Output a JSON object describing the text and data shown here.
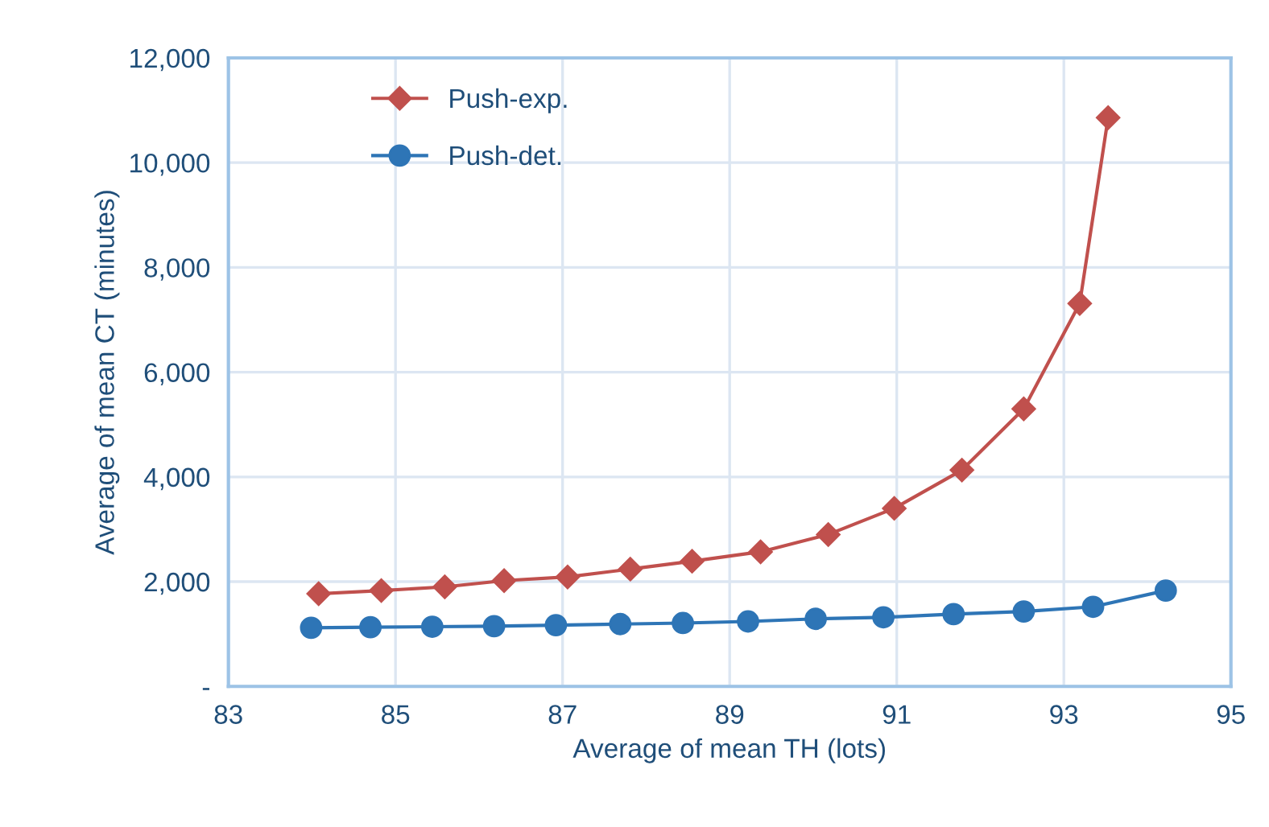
{
  "chart_data": {
    "type": "line",
    "xlabel": "Average of mean TH (lots)",
    "ylabel": "Average of mean CT (minutes)",
    "xlim": [
      83,
      95
    ],
    "xticks": [
      83,
      85,
      87,
      89,
      91,
      93,
      95
    ],
    "ylim": [
      0,
      12000
    ],
    "yticks": [
      {
        "value": 0,
        "label": "-"
      },
      {
        "value": 2000,
        "label": "2,000"
      },
      {
        "value": 4000,
        "label": "4,000"
      },
      {
        "value": 6000,
        "label": "6,000"
      },
      {
        "value": 8000,
        "label": "8,000"
      },
      {
        "value": 10000,
        "label": "10,000"
      },
      {
        "value": 12000,
        "label": "12,000"
      }
    ],
    "grid": true,
    "legend": "top left",
    "series": [
      {
        "name": "Push-exp.",
        "color": "#c0504d",
        "marker": "diamond",
        "x": [
          84.08,
          84.83,
          85.59,
          86.3,
          87.06,
          87.81,
          88.55,
          89.37,
          90.18,
          90.97,
          91.78,
          92.52,
          93.19,
          93.53
        ],
        "values": [
          1770,
          1830,
          1900,
          2020,
          2090,
          2240,
          2390,
          2570,
          2900,
          3400,
          4130,
          5300,
          7310,
          10860
        ]
      },
      {
        "name": "Push-det.",
        "color": "#2e75b6",
        "marker": "circle",
        "x": [
          83.99,
          84.7,
          85.44,
          86.18,
          86.92,
          87.69,
          88.44,
          89.22,
          90.03,
          90.84,
          91.68,
          92.52,
          93.35,
          94.22
        ],
        "values": [
          1120,
          1130,
          1140,
          1150,
          1170,
          1190,
          1210,
          1240,
          1290,
          1320,
          1380,
          1430,
          1520,
          1830
        ]
      }
    ]
  }
}
